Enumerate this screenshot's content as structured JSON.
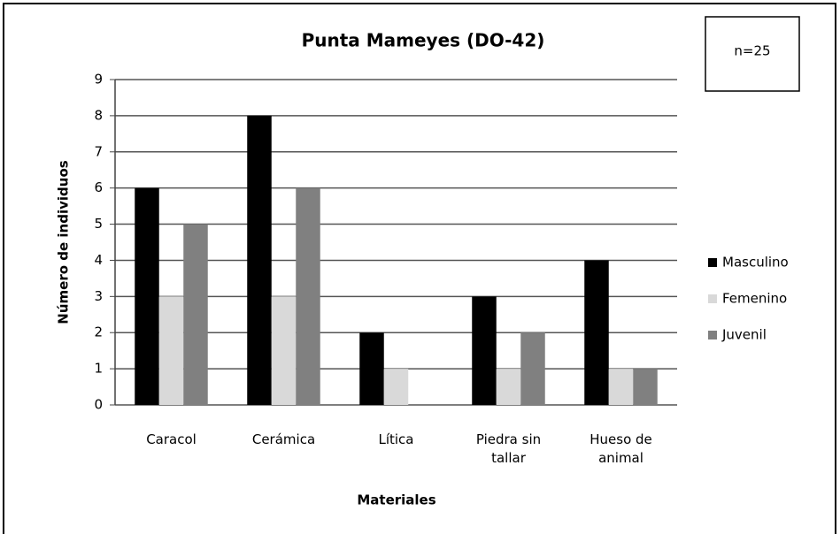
{
  "chart_data": {
    "type": "bar",
    "title": "Punta Mameyes (DO-42)",
    "annotation": "n=25",
    "x_label": "Materiales",
    "y_label": "Número de individuos",
    "categories": [
      "Caracol",
      "Cerámica",
      "Lítica",
      "Piedra sin tallar",
      "Hueso de animal"
    ],
    "series": [
      {
        "name": "Masculino",
        "color": "#000000",
        "values": [
          6,
          8,
          2,
          3,
          4
        ]
      },
      {
        "name": "Femenino",
        "color": "#d9d9d9",
        "values": [
          3,
          3,
          1,
          1,
          1
        ]
      },
      {
        "name": "Juvenil",
        "color": "#808080",
        "values": [
          5,
          6,
          0,
          2,
          1
        ]
      }
    ],
    "ylim": [
      0,
      9
    ],
    "yticks": [
      0,
      1,
      2,
      3,
      4,
      5,
      6,
      7,
      8,
      9
    ],
    "grid": true,
    "legend": "right"
  }
}
